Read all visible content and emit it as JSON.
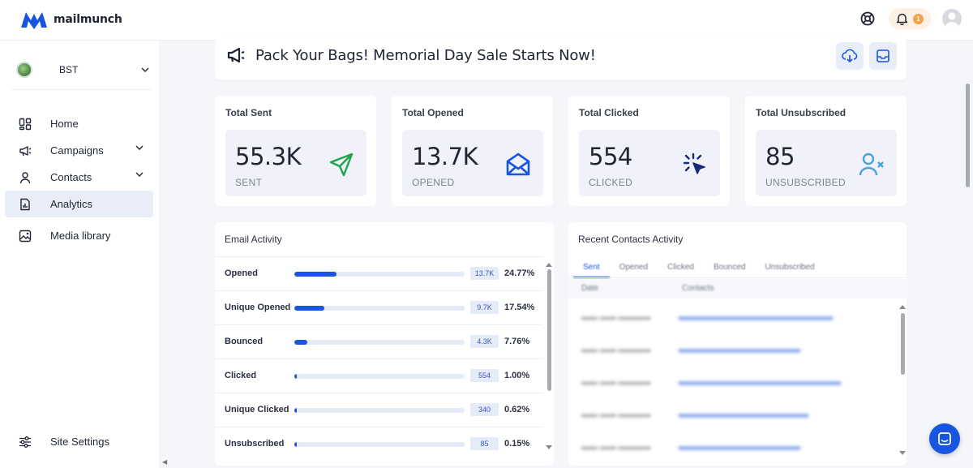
{
  "app": {
    "brand": "mailmunch"
  },
  "header": {
    "notifications_count": "1",
    "icons": [
      "help-lifebuoy-icon",
      "bell-icon",
      "user-avatar"
    ]
  },
  "sidebar": {
    "site": {
      "name": "BST"
    },
    "items": [
      {
        "label": "Home",
        "icon": "home-grid-icon"
      },
      {
        "label": "Campaigns",
        "icon": "megaphone-icon",
        "expandable": true
      },
      {
        "label": "Contacts",
        "icon": "person-icon",
        "expandable": true
      },
      {
        "label": "Analytics",
        "icon": "analytics-icon",
        "active": true
      },
      {
        "label": "Media library",
        "icon": "image-icon"
      }
    ],
    "settings": {
      "label": "Site Settings",
      "icon": "sliders-icon"
    }
  },
  "banner": {
    "title": "Pack Your Bags! Memorial Day Sale Starts Now!",
    "buttons": [
      "download-icon",
      "inbox-icon"
    ]
  },
  "stats": [
    {
      "title": "Total Sent",
      "value": "55.3K",
      "label": "SENT",
      "icon": "send-icon",
      "color": "#1ea44a"
    },
    {
      "title": "Total Opened",
      "value": "13.7K",
      "label": "OPENED",
      "icon": "open-envelope-icon",
      "color": "#1855e0"
    },
    {
      "title": "Total Clicked",
      "value": "554",
      "label": "CLICKED",
      "icon": "click-cursor-icon",
      "color": "#1a2a7a"
    },
    {
      "title": "Total Unsubscribed",
      "value": "85",
      "label": "UNSUBSCRIBED",
      "icon": "user-remove-icon",
      "color": "#4aa3df"
    }
  ],
  "email_activity": {
    "title": "Email Activity",
    "rows": [
      {
        "label": "Opened",
        "count": "13.7K",
        "pct": "24.77%",
        "fraction": 0.2477
      },
      {
        "label": "Unique Opened",
        "count": "9.7K",
        "pct": "17.54%",
        "fraction": 0.1754
      },
      {
        "label": "Bounced",
        "count": "4.3K",
        "pct": "7.76%",
        "fraction": 0.0776
      },
      {
        "label": "Clicked",
        "count": "554",
        "pct": "1.00%",
        "fraction": 0.01
      },
      {
        "label": "Unique Clicked",
        "count": "340",
        "pct": "0.62%",
        "fraction": 0.0062
      },
      {
        "label": "Unsubscribed",
        "count": "85",
        "pct": "0.15%",
        "fraction": 0.0015
      }
    ]
  },
  "recent_contacts": {
    "title": "Recent Contacts Activity",
    "tabs": [
      "Sent",
      "Opened",
      "Clicked",
      "Bounced",
      "Unsubscribed"
    ],
    "columns": [
      "Date",
      "Contacts"
    ]
  },
  "colors": {
    "accent": "#1855e0",
    "background": "#f5f6fa",
    "active_nav": "#e8edf8"
  }
}
